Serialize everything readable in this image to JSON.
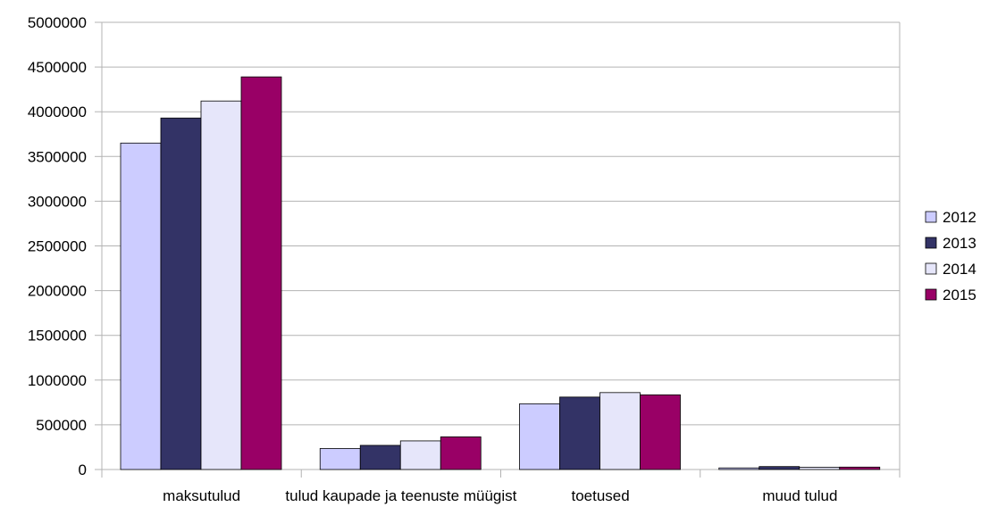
{
  "chart_data": {
    "type": "bar",
    "categories": [
      "maksutulud",
      "tulud kaupade ja teenuste müügist",
      "toetused",
      "muud tulud"
    ],
    "series": [
      {
        "name": "2012",
        "color": "#ccccff",
        "values": [
          3650000,
          235000,
          735000,
          18000
        ]
      },
      {
        "name": "2013",
        "color": "#333366",
        "values": [
          3930000,
          270000,
          810000,
          33000
        ]
      },
      {
        "name": "2014",
        "color": "#e6e6fa",
        "values": [
          4120000,
          320000,
          860000,
          26000
        ]
      },
      {
        "name": "2015",
        "color": "#990066",
        "values": [
          4390000,
          365000,
          835000,
          27000
        ]
      }
    ],
    "yticks": [
      "0",
      "500000",
      "1000000",
      "1500000",
      "2000000",
      "2500000",
      "3000000",
      "3500000",
      "4000000",
      "4500000",
      "5000000"
    ],
    "ylim": [
      0,
      5000000
    ],
    "grid": true,
    "legend_position": "right",
    "title": "",
    "xlabel": "",
    "ylabel": ""
  }
}
